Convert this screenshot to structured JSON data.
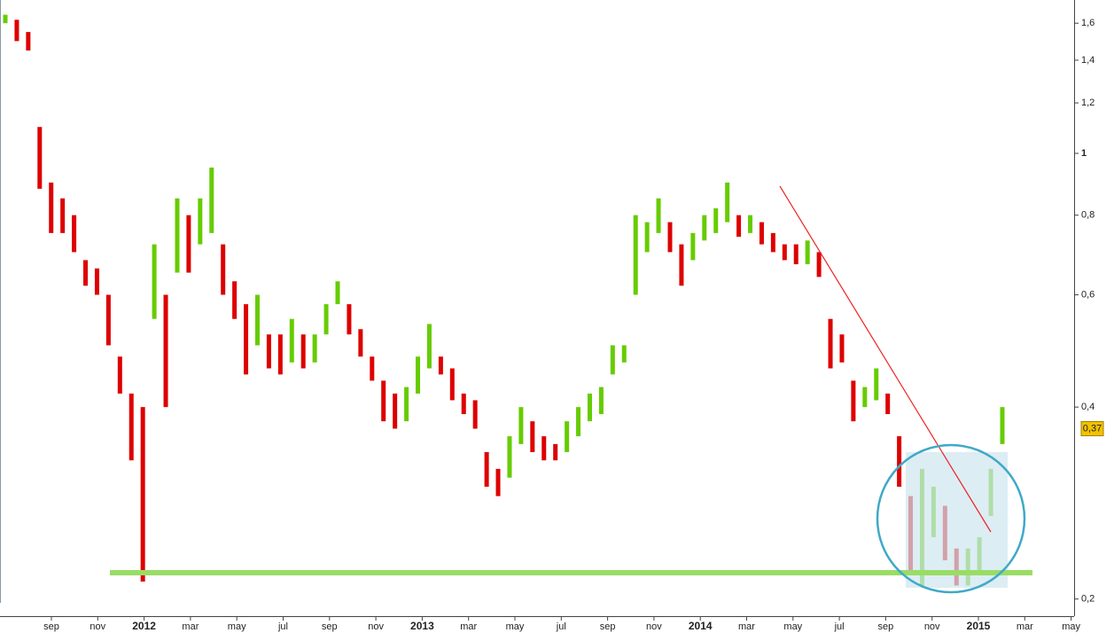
{
  "chart_data": {
    "type": "range-bars",
    "categories": [
      "sep",
      "nov",
      "2012",
      "mar",
      "may",
      "jul",
      "sep",
      "nov",
      "2013",
      "mar",
      "may",
      "jul",
      "sep",
      "nov",
      "2014",
      "mar",
      "may",
      "jul",
      "sep",
      "nov",
      "2015",
      "mar",
      "may"
    ],
    "high": [
      1.65,
      1.62,
      1.55,
      1.1,
      0.9,
      0.85,
      0.8,
      0.68,
      0.66,
      0.6,
      0.48,
      0.42,
      0.4,
      0.72,
      0.6,
      0.85,
      0.8,
      0.85,
      0.95,
      0.72,
      0.63,
      0.58,
      0.6,
      0.52,
      0.52,
      0.55,
      0.52,
      0.52,
      0.58,
      0.63,
      0.58,
      0.53,
      0.48,
      0.44,
      0.42,
      0.43,
      0.48,
      0.54,
      0.48,
      0.46,
      0.42,
      0.41,
      0.34,
      0.32,
      0.36,
      0.4,
      0.38,
      0.36,
      0.35,
      0.38,
      0.4,
      0.42,
      0.43,
      0.5,
      0.5,
      0.8,
      0.78,
      0.85,
      0.78,
      0.72,
      0.75,
      0.8,
      0.82,
      0.9,
      0.8,
      0.8,
      0.78,
      0.75,
      0.72,
      0.72,
      0.73,
      0.7,
      0.55,
      0.52,
      0.44,
      0.43,
      0.46,
      0.42,
      0.36,
      0.29,
      0.32,
      0.3,
      0.28,
      0.24,
      0.24,
      0.25,
      0.32,
      0.4
    ],
    "low": [
      1.6,
      1.5,
      1.45,
      0.88,
      0.75,
      0.75,
      0.7,
      0.62,
      0.6,
      0.5,
      0.42,
      0.33,
      0.213,
      0.55,
      0.4,
      0.65,
      0.65,
      0.72,
      0.75,
      0.6,
      0.55,
      0.45,
      0.5,
      0.46,
      0.45,
      0.47,
      0.46,
      0.47,
      0.52,
      0.58,
      0.52,
      0.48,
      0.44,
      0.38,
      0.37,
      0.38,
      0.42,
      0.46,
      0.45,
      0.41,
      0.39,
      0.37,
      0.3,
      0.29,
      0.31,
      0.35,
      0.34,
      0.33,
      0.33,
      0.34,
      0.36,
      0.38,
      0.39,
      0.45,
      0.47,
      0.6,
      0.7,
      0.75,
      0.7,
      0.62,
      0.68,
      0.73,
      0.75,
      0.78,
      0.74,
      0.75,
      0.72,
      0.7,
      0.68,
      0.67,
      0.67,
      0.64,
      0.46,
      0.47,
      0.38,
      0.4,
      0.41,
      0.39,
      0.3,
      0.22,
      0.21,
      0.25,
      0.23,
      0.21,
      0.21,
      0.22,
      0.27,
      0.35
    ],
    "up_color": "#66cc00",
    "down_color": "#dd0000",
    "log_scale": true,
    "ylim": [
      0.185,
      1.74
    ],
    "yticks": [
      {
        "value": 0.2,
        "label": "0,2"
      },
      {
        "value": 0.4,
        "label": "0,4"
      },
      {
        "value": 0.6,
        "label": "0,6"
      },
      {
        "value": 0.8,
        "label": "0,8"
      },
      1,
      {
        "value": 1.2,
        "label": "1,2"
      },
      {
        "value": 1.4,
        "label": "1,4"
      },
      {
        "value": 1.6,
        "label": "1,6"
      }
    ],
    "current_price": {
      "value": 0.37,
      "label": "0,37"
    }
  }
}
